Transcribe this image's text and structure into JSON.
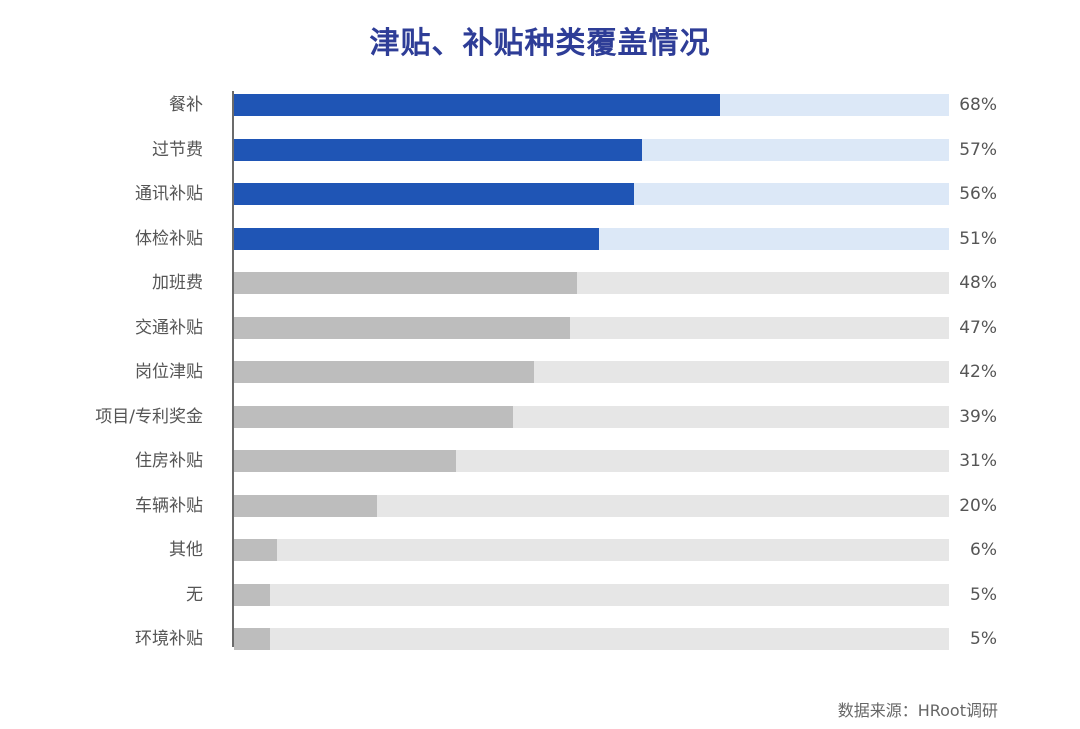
{
  "title": "津贴、补贴种类覆盖情况",
  "source": "数据来源：HRoot调研",
  "colors": {
    "highlight_fill": "#1f55b5",
    "highlight_track": "#dce8f7",
    "normal_fill": "#bdbdbd",
    "normal_track": "#e6e6e6",
    "axis": "#6b6b6b",
    "title": "#2e3d97",
    "text": "#555555"
  },
  "chart_data": {
    "type": "bar",
    "orientation": "horizontal",
    "title": "津贴、补贴种类覆盖情况",
    "xlabel": "",
    "ylabel": "",
    "xlim": [
      0,
      100
    ],
    "grid": false,
    "legend": null,
    "categories": [
      "餐补",
      "过节费",
      "通讯补贴",
      "体检补贴",
      "加班费",
      "交通补贴",
      "岗位津贴",
      "项目/专利奖金",
      "住房补贴",
      "车辆补贴",
      "其他",
      "无",
      "环境补贴"
    ],
    "values": [
      68,
      57,
      56,
      51,
      48,
      47,
      42,
      39,
      31,
      20,
      6,
      5,
      5
    ],
    "value_labels": [
      "68%",
      "57%",
      "56%",
      "51%",
      "48%",
      "47%",
      "42%",
      "39%",
      "31%",
      "20%",
      "6%",
      "5%",
      "5%"
    ],
    "highlighted": [
      true,
      true,
      true,
      true,
      false,
      false,
      false,
      false,
      false,
      false,
      false,
      false,
      false
    ],
    "annotation": "数据来源：HRoot调研"
  }
}
